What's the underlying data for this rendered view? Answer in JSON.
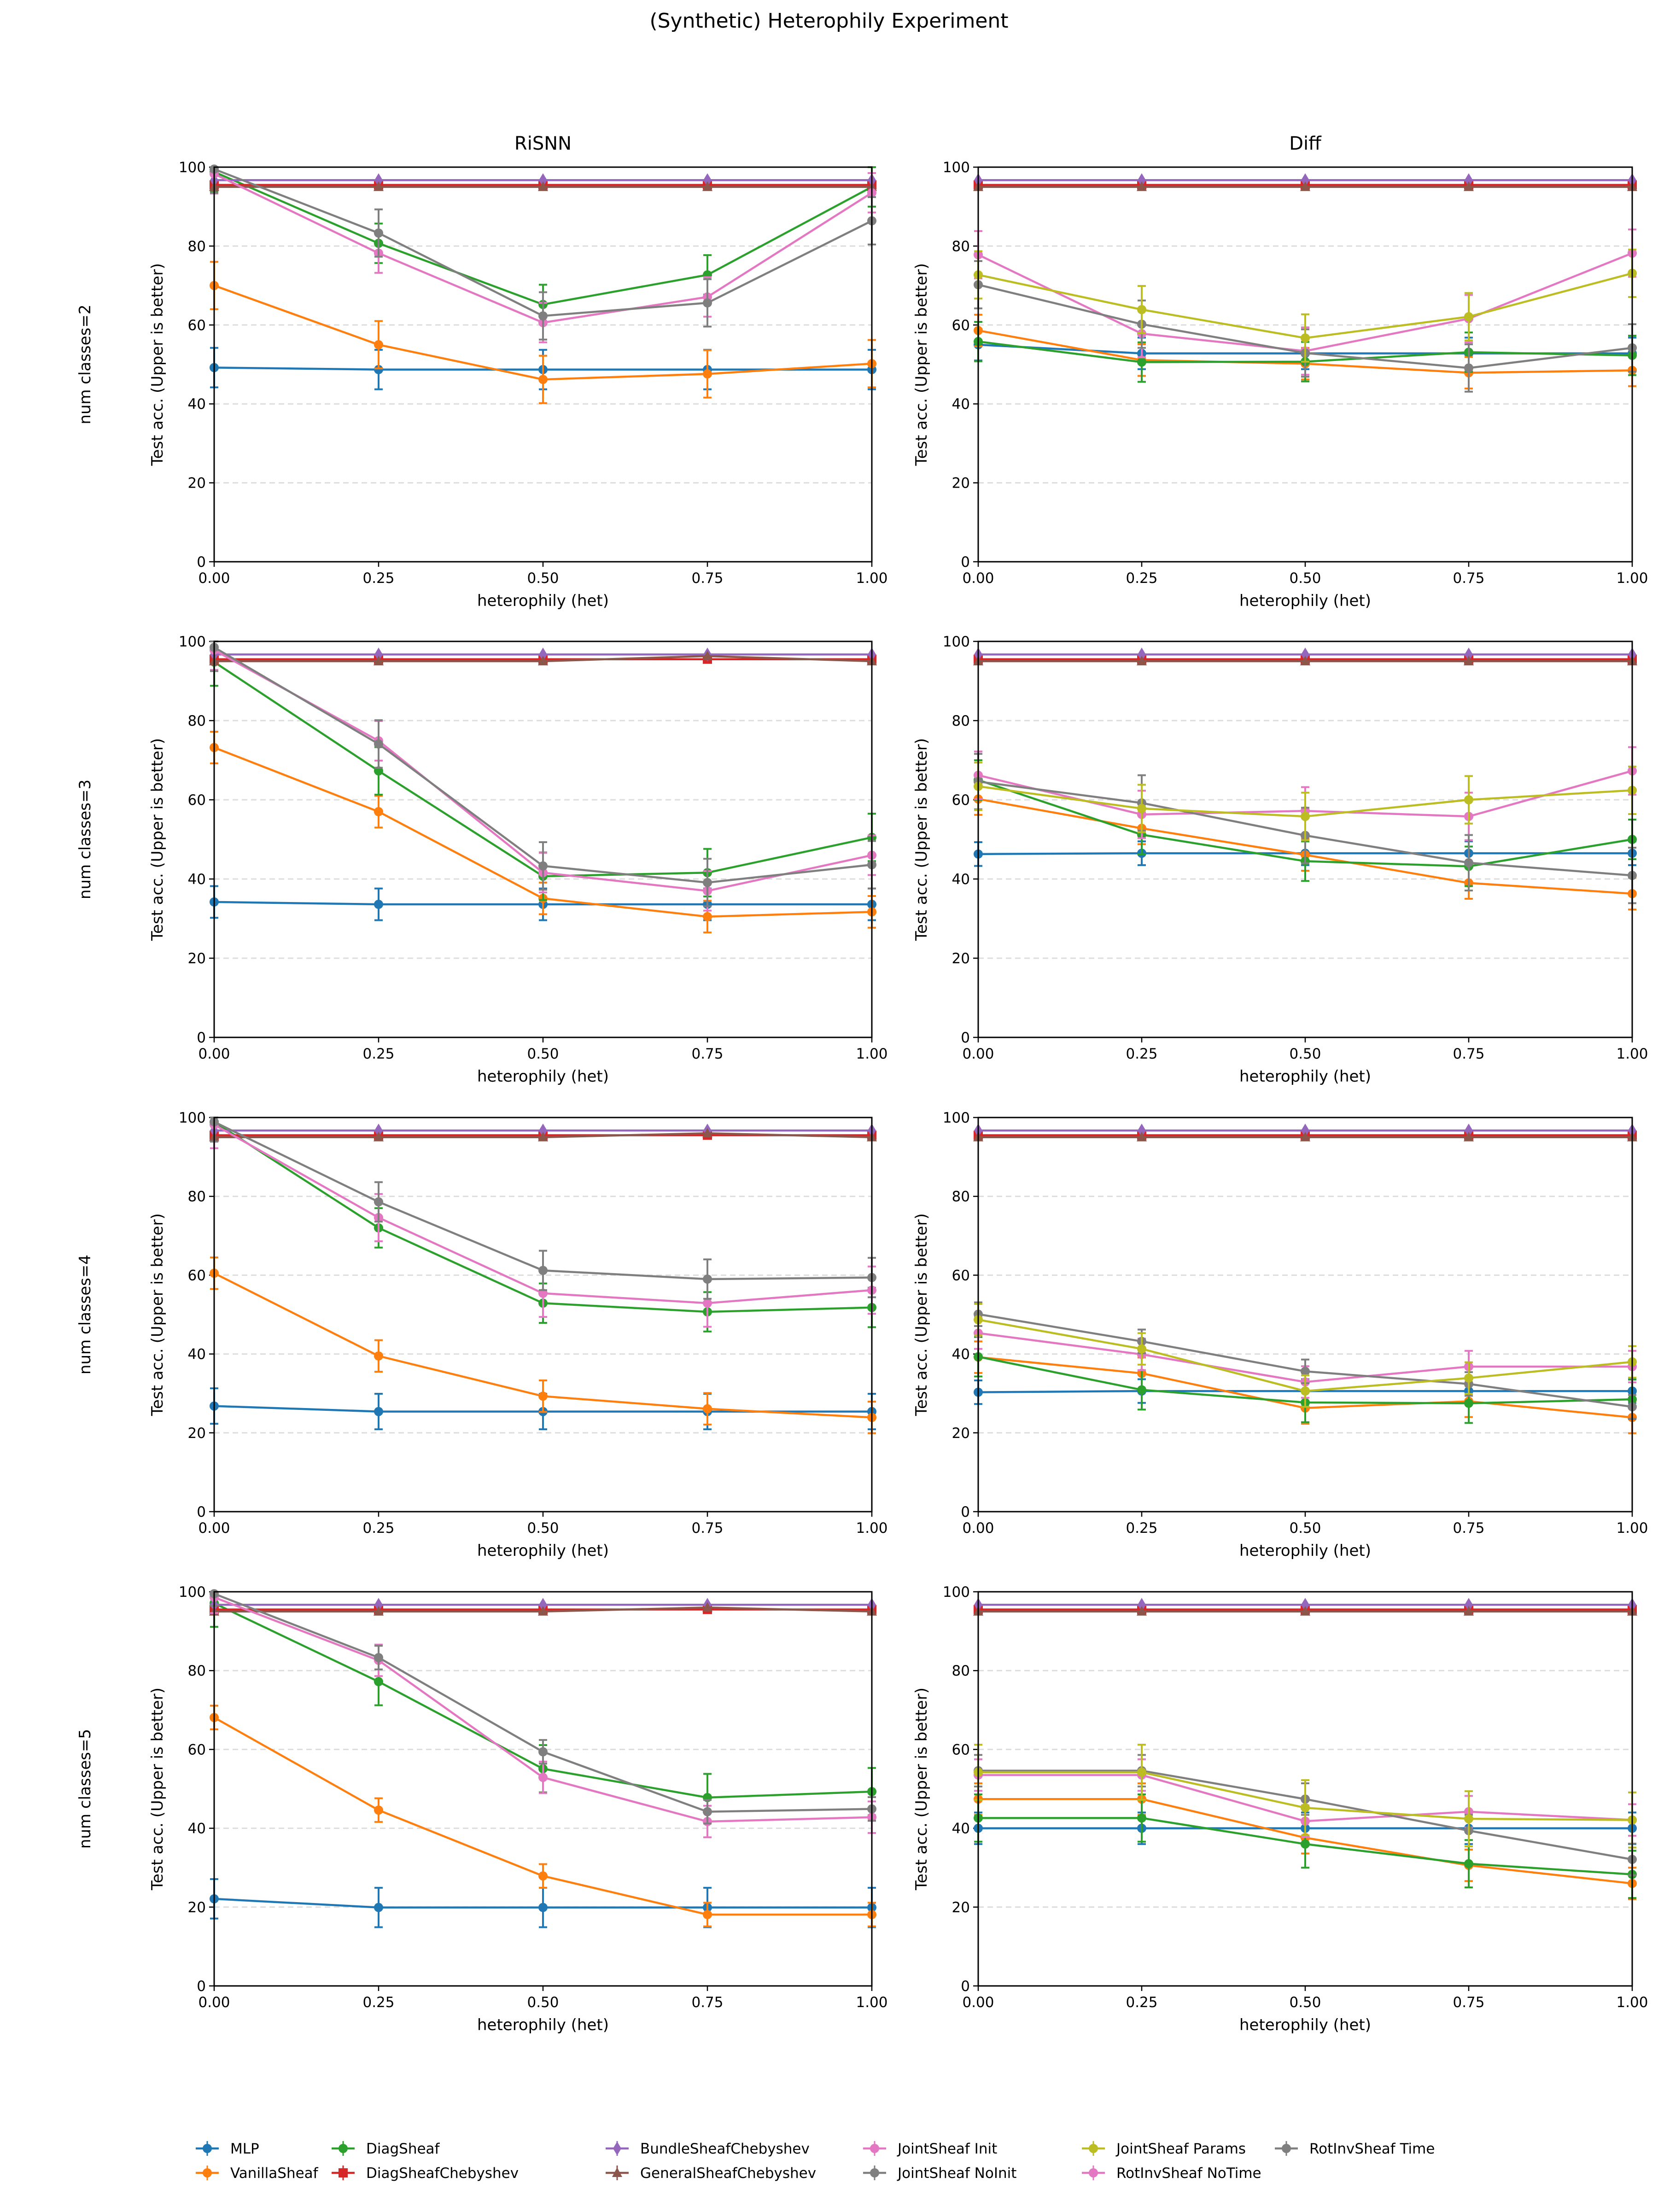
{
  "chart_data": {
    "type": "line",
    "title": "(Synthetic) Heterophily Experiment",
    "column_titles": [
      "RiSNN",
      "Diff"
    ],
    "row_labels": [
      "num classes=2",
      "num classes=3",
      "num classes=4",
      "num classes=5"
    ],
    "xlabel": "heterophily (het)",
    "ylabel": "Test acc. (Upper is better)",
    "x": [
      0.0,
      0.25,
      0.5,
      0.75,
      1.0
    ],
    "x_tick_labels": [
      "0.00",
      "0.25",
      "0.50",
      "0.75",
      "1.00"
    ],
    "y_tick_labels": [
      "0",
      "20",
      "40",
      "60",
      "80",
      "100"
    ],
    "xlim": [
      0,
      1
    ],
    "ylim": [
      0,
      100
    ],
    "grid": "horizontal dashed",
    "legend_placement": "bottom",
    "series": [
      {
        "name": "MLP",
        "color": "#1f77b4",
        "marker": "circle"
      },
      {
        "name": "VanillaSheaf",
        "color": "#ff7f0e",
        "marker": "circle"
      },
      {
        "name": "DiagSheaf",
        "color": "#2ca02c",
        "marker": "circle"
      },
      {
        "name": "DiagSheafChebyshev",
        "color": "#d62728",
        "marker": "square"
      },
      {
        "name": "BundleSheafChebyshev",
        "color": "#9467bd",
        "marker": "diamond"
      },
      {
        "name": "GeneralSheafChebyshev",
        "color": "#8c564b",
        "marker": "triangle"
      },
      {
        "name": "JointSheaf Init",
        "color": "#e377c2",
        "marker": "circle"
      },
      {
        "name": "JointSheaf NoInit",
        "color": "#7f7f7f",
        "marker": "circle"
      },
      {
        "name": "JointSheaf Params",
        "color": "#bcbd22",
        "marker": "circle"
      },
      {
        "name": "RotInvSheaf NoTime",
        "color": "#e377c2",
        "marker": "circle"
      },
      {
        "name": "RotInvSheaf Time",
        "color": "#7f7f7f",
        "marker": "circle"
      }
    ],
    "panels": [
      {
        "row": 0,
        "col": 0,
        "values": {
          "MLP": [
            49.2,
            48.7,
            48.7,
            48.7,
            48.7
          ],
          "VanillaSheaf": [
            70.0,
            55.0,
            46.2,
            47.6,
            50.2
          ],
          "DiagSheaf": [
            98.8,
            80.7,
            65.2,
            72.7,
            95.0
          ],
          "DiagSheafChebyshev": [
            95.5,
            95.5,
            95.5,
            95.5,
            95.5
          ],
          "BundleSheafChebyshev": [
            96.7,
            96.7,
            96.7,
            96.7,
            96.7
          ],
          "GeneralSheafChebyshev": [
            95.0,
            95.0,
            95.0,
            95.0,
            95.0
          ],
          "RotInvSheaf NoTime": [
            98.3,
            78.2,
            60.6,
            67.1,
            93.5
          ],
          "RotInvSheaf Time": [
            99.5,
            83.3,
            62.3,
            65.6,
            86.4
          ]
        },
        "yerr": {
          "MLP": 5,
          "VanillaSheaf": 6,
          "DiagSheaf": 5,
          "DiagSheafChebyshev": 0.5,
          "BundleSheafChebyshev": 0.5,
          "GeneralSheafChebyshev": 0.5,
          "RotInvSheaf NoTime": 5,
          "RotInvSheaf Time": 6
        }
      },
      {
        "row": 0,
        "col": 1,
        "values": {
          "MLP": [
            55.0,
            52.8,
            52.8,
            52.8,
            52.8
          ],
          "VanillaSheaf": [
            58.6,
            51.1,
            50.2,
            47.9,
            48.5
          ],
          "DiagSheaf": [
            55.8,
            50.6,
            50.7,
            53.1,
            52.3
          ],
          "DiagSheafChebyshev": [
            95.5,
            95.5,
            95.5,
            95.5,
            95.5
          ],
          "BundleSheafChebyshev": [
            96.7,
            96.7,
            96.7,
            96.7,
            96.7
          ],
          "GeneralSheafChebyshev": [
            95.0,
            95.0,
            95.0,
            95.0,
            95.0
          ],
          "JointSheaf Init": [
            77.8,
            57.8,
            53.4,
            61.6,
            78.2
          ],
          "JointSheaf NoInit": [
            70.2,
            60.2,
            52.9,
            49.1,
            54.2
          ],
          "JointSheaf Params": [
            72.7,
            63.9,
            56.7,
            62.1,
            73.1
          ]
        },
        "yerr": {
          "MLP": 4,
          "VanillaSheaf": 4,
          "DiagSheaf": 5,
          "DiagSheafChebyshev": 0.5,
          "BundleSheafChebyshev": 0.5,
          "GeneralSheafChebyshev": 0.5,
          "JointSheaf Init": 6,
          "JointSheaf NoInit": 6,
          "JointSheaf Params": 6
        }
      },
      {
        "row": 1,
        "col": 0,
        "values": {
          "MLP": [
            34.2,
            33.6,
            33.6,
            33.6,
            33.6
          ],
          "VanillaSheaf": [
            73.2,
            57.0,
            35.1,
            30.5,
            31.7
          ],
          "DiagSheaf": [
            94.8,
            67.3,
            40.7,
            41.6,
            50.5
          ],
          "DiagSheafChebyshev": [
            95.5,
            95.5,
            95.5,
            95.5,
            95.5
          ],
          "BundleSheafChebyshev": [
            96.7,
            96.7,
            96.7,
            96.7,
            96.7
          ],
          "GeneralSheafChebyshev": [
            95.0,
            95.0,
            95.0,
            96.3,
            95.0
          ],
          "RotInvSheaf NoTime": [
            97.8,
            74.9,
            41.6,
            37.0,
            46.0
          ],
          "RotInvSheaf Time": [
            98.5,
            74.1,
            43.3,
            39.1,
            43.6
          ]
        },
        "yerr": {
          "MLP": 4,
          "VanillaSheaf": 4,
          "DiagSheaf": 6,
          "DiagSheafChebyshev": 0.5,
          "BundleSheafChebyshev": 0.5,
          "GeneralSheafChebyshev": 0.5,
          "RotInvSheaf NoTime": 5,
          "RotInvSheaf Time": 6
        }
      },
      {
        "row": 1,
        "col": 1,
        "values": {
          "MLP": [
            46.3,
            46.5,
            46.5,
            46.5,
            46.5
          ],
          "VanillaSheaf": [
            60.2,
            52.8,
            46.1,
            39.0,
            36.3
          ],
          "DiagSheaf": [
            65.0,
            51.2,
            44.5,
            43.2,
            50.0
          ],
          "DiagSheafChebyshev": [
            95.5,
            95.5,
            95.5,
            95.5,
            95.5
          ],
          "BundleSheafChebyshev": [
            96.7,
            96.7,
            96.7,
            96.7,
            96.7
          ],
          "GeneralSheafChebyshev": [
            95.0,
            95.0,
            95.0,
            95.0,
            95.0
          ],
          "JointSheaf Init": [
            66.2,
            56.3,
            57.2,
            55.8,
            67.3
          ],
          "JointSheaf NoInit": [
            64.6,
            59.2,
            51.0,
            44.1,
            40.9
          ],
          "JointSheaf Params": [
            63.4,
            57.8,
            55.8,
            60.0,
            62.4
          ]
        },
        "yerr": {
          "MLP": 3,
          "VanillaSheaf": 4,
          "DiagSheaf": 5,
          "DiagSheafChebyshev": 0.5,
          "BundleSheafChebyshev": 0.5,
          "GeneralSheafChebyshev": 0.5,
          "JointSheaf Init": 6,
          "JointSheaf NoInit": 7,
          "JointSheaf Params": 6
        }
      },
      {
        "row": 2,
        "col": 0,
        "values": {
          "MLP": [
            26.8,
            25.4,
            25.4,
            25.4,
            25.4
          ],
          "VanillaSheaf": [
            60.5,
            39.5,
            29.3,
            26.1,
            23.9
          ],
          "DiagSheaf": [
            98.9,
            72.0,
            52.9,
            50.7,
            51.8
          ],
          "DiagSheafChebyshev": [
            95.5,
            95.5,
            95.5,
            95.5,
            95.5
          ],
          "BundleSheafChebyshev": [
            96.7,
            96.7,
            96.7,
            96.7,
            96.7
          ],
          "GeneralSheafChebyshev": [
            95.0,
            95.0,
            95.0,
            96.0,
            95.0
          ],
          "RotInvSheaf NoTime": [
            98.2,
            74.6,
            55.4,
            52.9,
            56.2
          ],
          "RotInvSheaf Time": [
            98.9,
            78.6,
            61.2,
            59.0,
            59.4
          ]
        },
        "yerr": {
          "MLP": 4.5,
          "VanillaSheaf": 4,
          "DiagSheaf": 5,
          "DiagSheafChebyshev": 0.5,
          "BundleSheafChebyshev": 0.5,
          "GeneralSheafChebyshev": 0.5,
          "RotInvSheaf NoTime": 6,
          "RotInvSheaf Time": 5
        }
      },
      {
        "row": 2,
        "col": 1,
        "values": {
          "MLP": [
            30.3,
            30.6,
            30.6,
            30.6,
            30.6
          ],
          "VanillaSheaf": [
            39.2,
            35.1,
            26.3,
            28.0,
            23.9
          ],
          "DiagSheaf": [
            39.3,
            30.9,
            27.7,
            27.5,
            28.5
          ],
          "DiagSheafChebyshev": [
            95.5,
            95.5,
            95.5,
            95.5,
            95.5
          ],
          "BundleSheafChebyshev": [
            96.7,
            96.7,
            96.7,
            96.7,
            96.7
          ],
          "GeneralSheafChebyshev": [
            95.0,
            95.0,
            95.0,
            95.0,
            95.0
          ],
          "JointSheaf Init": [
            45.3,
            39.9,
            32.9,
            36.8,
            36.8
          ],
          "JointSheaf NoInit": [
            50.1,
            43.2,
            35.6,
            32.4,
            26.6
          ],
          "JointSheaf Params": [
            48.7,
            41.3,
            30.6,
            33.9,
            38.0
          ]
        },
        "yerr": {
          "MLP": 3,
          "VanillaSheaf": 4,
          "DiagSheaf": 5,
          "DiagSheafChebyshev": 0.5,
          "BundleSheafChebyshev": 0.5,
          "GeneralSheafChebyshev": 0.5,
          "JointSheaf Init": 4,
          "JointSheaf NoInit": 3,
          "JointSheaf Params": 4
        }
      },
      {
        "row": 3,
        "col": 0,
        "values": {
          "MLP": [
            22.1,
            19.9,
            19.9,
            19.9,
            19.9
          ],
          "VanillaSheaf": [
            68.1,
            44.6,
            27.9,
            18.1,
            18.1
          ],
          "DiagSheaf": [
            97.1,
            77.2,
            55.1,
            47.8,
            49.3
          ],
          "DiagSheafChebyshev": [
            95.5,
            95.5,
            95.5,
            95.5,
            95.5
          ],
          "BundleSheafChebyshev": [
            96.7,
            96.7,
            96.7,
            96.7,
            96.7
          ],
          "GeneralSheafChebyshev": [
            95.0,
            95.0,
            95.0,
            96.0,
            95.0
          ],
          "RotInvSheaf NoTime": [
            98.6,
            82.6,
            52.9,
            41.7,
            42.8
          ],
          "RotInvSheaf Time": [
            99.5,
            83.3,
            59.4,
            44.2,
            44.9
          ]
        },
        "yerr": {
          "MLP": 5,
          "VanillaSheaf": 3,
          "DiagSheaf": 6,
          "DiagSheafChebyshev": 0.5,
          "BundleSheafChebyshev": 0.5,
          "GeneralSheafChebyshev": 0.5,
          "RotInvSheaf NoTime": 4,
          "RotInvSheaf Time": 3
        }
      },
      {
        "row": 3,
        "col": 1,
        "values": {
          "MLP": [
            40.0,
            40.0,
            40.0,
            40.0,
            40.0
          ],
          "VanillaSheaf": [
            47.4,
            47.4,
            37.6,
            30.6,
            26.0
          ],
          "DiagSheaf": [
            42.6,
            42.6,
            36.0,
            31.0,
            28.3
          ],
          "DiagSheafChebyshev": [
            95.5,
            95.5,
            95.5,
            95.5,
            95.5
          ],
          "BundleSheafChebyshev": [
            96.7,
            96.7,
            96.7,
            96.7,
            96.7
          ],
          "GeneralSheafChebyshev": [
            95.0,
            95.0,
            95.0,
            95.0,
            95.0
          ],
          "JointSheaf Init": [
            53.5,
            53.5,
            41.8,
            44.2,
            42.1
          ],
          "JointSheaf NoInit": [
            54.6,
            54.6,
            47.4,
            39.4,
            32.1
          ],
          "JointSheaf Params": [
            54.2,
            54.2,
            45.2,
            42.4,
            42.1
          ]
        },
        "yerr": {
          "MLP": 4,
          "VanillaSheaf": 4,
          "DiagSheaf": 6,
          "DiagSheafChebyshev": 0.5,
          "BundleSheafChebyshev": 0.5,
          "GeneralSheafChebyshev": 0.5,
          "JointSheaf Init": 4,
          "JointSheaf NoInit": 4,
          "JointSheaf Params": 7
        }
      }
    ]
  }
}
